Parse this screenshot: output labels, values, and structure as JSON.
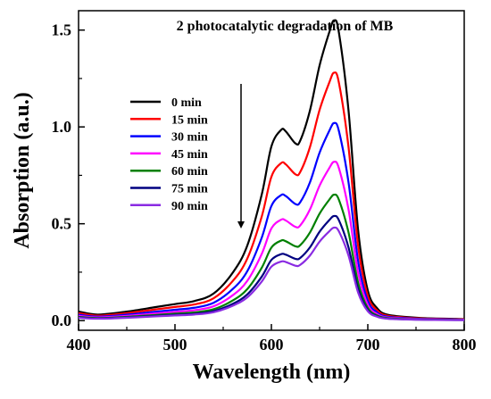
{
  "chart_data": {
    "type": "line",
    "title": "2 photocatalytic degradation of MB",
    "xlabel": "Wavelength (nm)",
    "ylabel": "Absorption (a.u.)",
    "xlim": [
      400,
      800
    ],
    "ylim": [
      -0.05,
      1.6
    ],
    "x_ticks": [
      400,
      500,
      600,
      700,
      800
    ],
    "y_ticks": [
      0.0,
      0.5,
      1.0,
      1.5
    ],
    "x_tick_labels": [
      "400",
      "500",
      "600",
      "700",
      "800"
    ],
    "y_tick_labels": [
      "0.0",
      "0.5",
      "1.0",
      "1.5"
    ],
    "grid": false,
    "legend_position": "upper-left",
    "arrow": "downward",
    "shape": {
      "x": [
        400,
        420,
        450,
        480,
        500,
        520,
        540,
        560,
        575,
        590,
        600,
        610,
        615,
        625,
        630,
        640,
        650,
        660,
        665,
        670,
        680,
        690,
        700,
        710,
        720,
        740,
        760,
        800
      ],
      "units": [
        0.03,
        0.02,
        0.03,
        0.045,
        0.055,
        0.065,
        0.09,
        0.16,
        0.25,
        0.42,
        0.58,
        0.635,
        0.63,
        0.59,
        0.6,
        0.7,
        0.85,
        0.96,
        1.0,
        0.96,
        0.7,
        0.3,
        0.1,
        0.04,
        0.02,
        0.012,
        0.008,
        0.005
      ]
    },
    "series": [
      {
        "name": "0 min",
        "color": "#000000",
        "peak": 1.55
      },
      {
        "name": "15 min",
        "color": "#ff0000",
        "peak": 1.28
      },
      {
        "name": "30 min",
        "color": "#0000ff",
        "peak": 1.02
      },
      {
        "name": "45 min",
        "color": "#ff00ff",
        "peak": 0.82
      },
      {
        "name": "60 min",
        "color": "#008000",
        "peak": 0.65
      },
      {
        "name": "75 min",
        "color": "#000080",
        "peak": 0.54
      },
      {
        "name": "90 min",
        "color": "#8a2be2",
        "peak": 0.48
      }
    ]
  }
}
